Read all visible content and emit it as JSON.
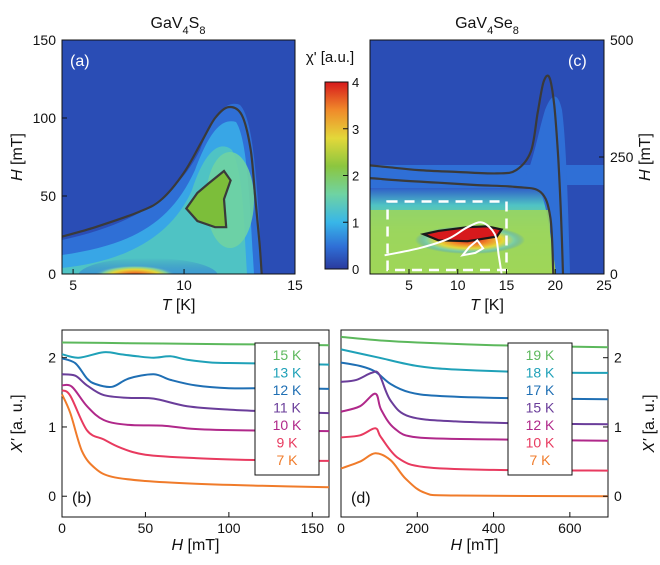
{
  "figure": {
    "title_a": "GaV₄S₈",
    "title_c": "GaV₄Se₈",
    "colorbar_label": "χ' [a.u.]"
  },
  "chart_data": [
    {
      "panel": "(a)",
      "type": "heatmap",
      "title": "GaV₄S₈",
      "xlabel": "T [K]",
      "ylabel": "H [mT]",
      "xlim": [
        4.5,
        15
      ],
      "ylim": [
        0,
        150
      ],
      "x_ticks": [
        5,
        10,
        15
      ],
      "y_ticks": [
        0,
        50,
        100,
        150
      ],
      "outer_contour": [
        [
          4.5,
          24
        ],
        [
          6,
          30
        ],
        [
          8,
          40
        ],
        [
          9,
          48
        ],
        [
          10,
          65
        ],
        [
          10.8,
          85
        ],
        [
          11.4,
          100
        ],
        [
          12,
          107
        ],
        [
          12.6,
          102
        ],
        [
          13,
          80
        ],
        [
          13.2,
          50
        ],
        [
          13.4,
          20
        ],
        [
          13.5,
          0
        ]
      ],
      "inner_contour": [
        [
          10.1,
          42
        ],
        [
          10.6,
          52
        ],
        [
          11.1,
          58
        ],
        [
          11.8,
          66
        ],
        [
          12.1,
          60
        ],
        [
          11.8,
          48
        ],
        [
          11.9,
          30
        ],
        [
          11.4,
          30
        ],
        [
          10.6,
          34
        ],
        [
          10.1,
          42
        ]
      ]
    },
    {
      "panel": "(c)",
      "type": "heatmap",
      "title": "GaV₄Se₈",
      "xlabel": "T [K]",
      "ylabel": "H [mT]",
      "xlim": [
        1,
        25
      ],
      "ylim": [
        0,
        500
      ],
      "x_ticks": [
        5,
        10,
        15,
        20,
        25
      ],
      "y_ticks": [
        0,
        250,
        500
      ],
      "outer_contour": [
        [
          1,
          232
        ],
        [
          3,
          228
        ],
        [
          6,
          222
        ],
        [
          10,
          218
        ],
        [
          14,
          215
        ],
        [
          16,
          222
        ],
        [
          17.5,
          262
        ],
        [
          18.2,
          345
        ],
        [
          18.8,
          410
        ],
        [
          19.4,
          420
        ],
        [
          19.9,
          360
        ],
        [
          20.3,
          250
        ],
        [
          20.6,
          120
        ],
        [
          20.8,
          0
        ]
      ],
      "second_contour": [
        [
          1,
          205
        ],
        [
          4,
          200
        ],
        [
          8,
          195
        ],
        [
          12,
          190
        ],
        [
          16,
          186
        ],
        [
          18.5,
          175
        ],
        [
          19.5,
          120
        ],
        [
          19.8,
          0
        ]
      ],
      "black_contour": [
        [
          6.5,
          85
        ],
        [
          8,
          92
        ],
        [
          11,
          100
        ],
        [
          13,
          102
        ],
        [
          14.5,
          95
        ],
        [
          14,
          80
        ],
        [
          11,
          70
        ],
        [
          8,
          72
        ],
        [
          6.5,
          85
        ]
      ],
      "white_contour": [
        [
          2.5,
          40
        ],
        [
          6,
          55
        ],
        [
          9,
          75
        ],
        [
          11,
          100
        ],
        [
          12.5,
          110
        ],
        [
          13.8,
          85
        ],
        [
          14.2,
          40
        ],
        [
          14.5,
          0
        ]
      ],
      "white_inner_contour": [
        [
          10.5,
          40
        ],
        [
          11.2,
          58
        ],
        [
          12,
          72
        ],
        [
          12.6,
          55
        ],
        [
          11.8,
          45
        ],
        [
          10.5,
          40
        ]
      ],
      "dashed_box": {
        "x": [
          2.8,
          15
        ],
        "y": [
          0,
          155
        ]
      }
    },
    {
      "panel": "(b)",
      "type": "line",
      "xlabel": "H [mT]",
      "ylabel": "X' [a. u.]",
      "xlim": [
        0,
        160
      ],
      "ylim": [
        -0.3,
        2.4
      ],
      "x_ticks": [
        0,
        50,
        100,
        150
      ],
      "y_ticks": [
        0,
        1,
        2
      ],
      "series": [
        {
          "name": "15 K",
          "color": "#5cb85c",
          "points": [
            [
              0,
              2.22
            ],
            [
              40,
              2.21
            ],
            [
              80,
              2.2
            ],
            [
              120,
              2.19
            ],
            [
              160,
              2.18
            ]
          ]
        },
        {
          "name": "13 K",
          "color": "#1fa1b8",
          "points": [
            [
              0,
              2.05
            ],
            [
              10,
              2.0
            ],
            [
              25,
              2.08
            ],
            [
              35,
              2.05
            ],
            [
              45,
              2.02
            ],
            [
              55,
              2.0
            ],
            [
              65,
              2.02
            ],
            [
              75,
              1.97
            ],
            [
              90,
              1.93
            ],
            [
              110,
              1.92
            ],
            [
              160,
              1.9
            ]
          ]
        },
        {
          "name": "12 K",
          "color": "#1f6fb4",
          "points": [
            [
              0,
              1.99
            ],
            [
              8,
              1.92
            ],
            [
              15,
              1.7
            ],
            [
              20,
              1.62
            ],
            [
              30,
              1.58
            ],
            [
              40,
              1.7
            ],
            [
              55,
              1.76
            ],
            [
              65,
              1.68
            ],
            [
              80,
              1.6
            ],
            [
              100,
              1.56
            ],
            [
              130,
              1.56
            ],
            [
              160,
              1.55
            ]
          ]
        },
        {
          "name": "11 K",
          "color": "#6a3d9a",
          "points": [
            [
              0,
              1.76
            ],
            [
              8,
              1.74
            ],
            [
              15,
              1.6
            ],
            [
              25,
              1.46
            ],
            [
              40,
              1.42
            ],
            [
              55,
              1.41
            ],
            [
              75,
              1.3
            ],
            [
              100,
              1.25
            ],
            [
              130,
              1.22
            ],
            [
              160,
              1.2
            ]
          ]
        },
        {
          "name": "10 K",
          "color": "#b0288a",
          "points": [
            [
              0,
              1.6
            ],
            [
              6,
              1.58
            ],
            [
              15,
              1.3
            ],
            [
              25,
              1.1
            ],
            [
              40,
              1.03
            ],
            [
              60,
              1.02
            ],
            [
              80,
              0.97
            ],
            [
              110,
              0.95
            ],
            [
              160,
              0.94
            ]
          ]
        },
        {
          "name": "9 K",
          "color": "#e83a5f",
          "points": [
            [
              0,
              1.53
            ],
            [
              5,
              1.45
            ],
            [
              15,
              0.95
            ],
            [
              25,
              0.82
            ],
            [
              35,
              0.7
            ],
            [
              50,
              0.6
            ],
            [
              80,
              0.55
            ],
            [
              120,
              0.52
            ],
            [
              160,
              0.51
            ]
          ]
        },
        {
          "name": "7 K",
          "color": "#f07b2a",
          "points": [
            [
              0,
              1.47
            ],
            [
              5,
              1.2
            ],
            [
              12,
              0.65
            ],
            [
              20,
              0.4
            ],
            [
              30,
              0.28
            ],
            [
              50,
              0.22
            ],
            [
              80,
              0.18
            ],
            [
              120,
              0.15
            ],
            [
              160,
              0.13
            ]
          ]
        }
      ]
    },
    {
      "panel": "(d)",
      "type": "line",
      "xlabel": "H [mT]",
      "ylabel": "X' [a. u.]",
      "xlim": [
        0,
        700
      ],
      "ylim": [
        -0.3,
        2.4
      ],
      "x_ticks": [
        0,
        200,
        400,
        600
      ],
      "y_ticks": [
        0,
        1,
        2
      ],
      "series": [
        {
          "name": "19 K",
          "color": "#5cb85c",
          "points": [
            [
              0,
              2.3
            ],
            [
              100,
              2.25
            ],
            [
              200,
              2.22
            ],
            [
              400,
              2.18
            ],
            [
              600,
              2.16
            ],
            [
              700,
              2.15
            ]
          ]
        },
        {
          "name": "18 K",
          "color": "#1fa1b8",
          "points": [
            [
              0,
              2.12
            ],
            [
              100,
              2.0
            ],
            [
              200,
              1.88
            ],
            [
              300,
              1.83
            ],
            [
              500,
              1.79
            ],
            [
              700,
              1.78
            ]
          ]
        },
        {
          "name": "17 K",
          "color": "#1f6fb4",
          "points": [
            [
              0,
              1.93
            ],
            [
              50,
              1.88
            ],
            [
              90,
              1.8
            ],
            [
              130,
              1.62
            ],
            [
              180,
              1.5
            ],
            [
              250,
              1.45
            ],
            [
              400,
              1.42
            ],
            [
              700,
              1.4
            ]
          ]
        },
        {
          "name": "15 K",
          "color": "#6a3d9a",
          "points": [
            [
              0,
              1.65
            ],
            [
              40,
              1.68
            ],
            [
              80,
              1.78
            ],
            [
              100,
              1.76
            ],
            [
              130,
              1.38
            ],
            [
              180,
              1.15
            ],
            [
              300,
              1.08
            ],
            [
              500,
              1.05
            ],
            [
              700,
              1.04
            ]
          ]
        },
        {
          "name": "12 K",
          "color": "#b0288a",
          "points": [
            [
              0,
              1.22
            ],
            [
              50,
              1.3
            ],
            [
              90,
              1.48
            ],
            [
              105,
              1.25
            ],
            [
              140,
              0.98
            ],
            [
              200,
              0.85
            ],
            [
              400,
              0.82
            ],
            [
              700,
              0.8
            ]
          ]
        },
        {
          "name": "10 K",
          "color": "#e83a5f",
          "points": [
            [
              0,
              0.85
            ],
            [
              50,
              0.88
            ],
            [
              90,
              0.98
            ],
            [
              105,
              0.85
            ],
            [
              150,
              0.55
            ],
            [
              220,
              0.42
            ],
            [
              400,
              0.38
            ],
            [
              700,
              0.37
            ]
          ]
        },
        {
          "name": "7 K",
          "color": "#f07b2a",
          "points": [
            [
              0,
              0.4
            ],
            [
              50,
              0.5
            ],
            [
              90,
              0.62
            ],
            [
              130,
              0.52
            ],
            [
              170,
              0.25
            ],
            [
              220,
              0.05
            ],
            [
              300,
              0.01
            ],
            [
              700,
              0.0
            ]
          ]
        }
      ]
    },
    {
      "panel": "colorbar",
      "type": "heatmap",
      "label": "χ' [a.u.]",
      "range": [
        0,
        4
      ],
      "ticks": [
        0,
        1,
        2,
        3,
        4
      ]
    }
  ]
}
